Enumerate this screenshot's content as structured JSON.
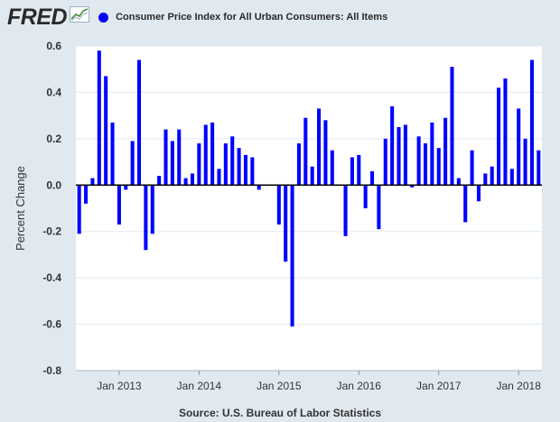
{
  "header": {
    "logo_text": "FRED",
    "logo_icon": "line-chart-icon"
  },
  "colors": {
    "background": "#e1e9f0",
    "plot_background": "#ffffff",
    "series": "#0000ff",
    "grid": "#e1e9f0",
    "zero_line": "#000000"
  },
  "chart_data": {
    "type": "bar",
    "series": [
      {
        "name": "Consumer Price Index for All Urban Consumers: All Items",
        "values": [
          -0.21,
          -0.08,
          0.03,
          0.58,
          0.47,
          0.27,
          -0.17,
          -0.02,
          0.19,
          0.54,
          -0.28,
          -0.21,
          0.04,
          0.24,
          0.19,
          0.24,
          0.03,
          0.05,
          0.18,
          0.26,
          0.27,
          0.07,
          0.18,
          0.21,
          0.16,
          0.13,
          0.12,
          -0.02,
          0.0,
          0.0,
          -0.17,
          -0.33,
          -0.61,
          0.18,
          0.29,
          0.08,
          0.33,
          0.28,
          0.15,
          0.0,
          -0.22,
          0.12,
          0.13,
          -0.1,
          0.06,
          -0.19,
          0.2,
          0.34,
          0.25,
          0.26,
          -0.01,
          0.21,
          0.18,
          0.27,
          0.16,
          0.29,
          0.51,
          0.03,
          -0.16,
          0.15,
          -0.07,
          0.05,
          0.08,
          0.42,
          0.46,
          0.07,
          0.33,
          0.2,
          0.54,
          0.15
        ]
      }
    ],
    "x_start": "Jul 2012",
    "x_end": "Apr 2018",
    "x_ticks": [
      "Jan 2013",
      "Jan 2014",
      "Jan 2015",
      "Jan 2016",
      "Jan 2017",
      "Jan 2018"
    ],
    "y_ticks": [
      "0.6",
      "0.4",
      "0.2",
      "0.0",
      "-0.2",
      "-0.4",
      "-0.6",
      "-0.8"
    ],
    "ylabel": "Percent Change",
    "ylim": [
      -0.8,
      0.6
    ],
    "grid": true,
    "legend_position": "top-left"
  },
  "footer": {
    "source": "Source: U.S. Bureau of Labor Statistics"
  }
}
